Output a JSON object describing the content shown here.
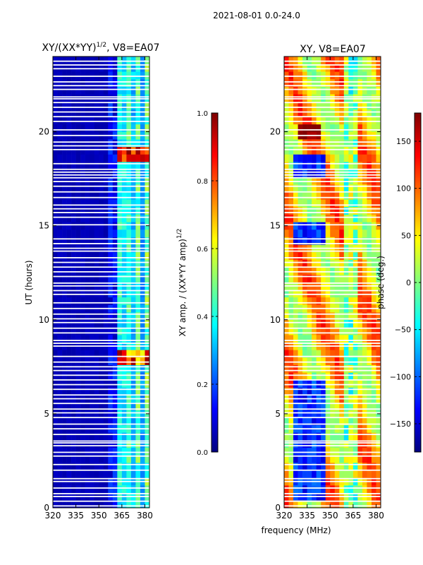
{
  "figure_title": "2021-08-01 0.0-24.0",
  "shared_xlabel": "frequency (MHz)",
  "colors": {
    "jet": [
      "#00007f",
      "#0000ff",
      "#007fff",
      "#00ffff",
      "#7fff7f",
      "#ffff00",
      "#ff7f00",
      "#ff0000",
      "#7f0000"
    ],
    "gap": "#ffffff"
  },
  "chart_data": [
    {
      "type": "heatmap",
      "title_prefix": "XY/(XX*YY)",
      "title_exponent": "1/2",
      "title_suffix": ", V8=EA07",
      "xlabel": "",
      "ylabel": "UT (hours)",
      "xlim": [
        320,
        383
      ],
      "ylim": [
        0,
        24
      ],
      "xticks": [
        "320",
        "335",
        "350",
        "365",
        "380"
      ],
      "xtick_values": [
        320,
        335,
        350,
        365,
        380
      ],
      "yticks": [
        "0",
        "5",
        "10",
        "15",
        "20"
      ],
      "ytick_values": [
        0,
        5,
        10,
        15,
        20
      ],
      "colorbar": {
        "label": "XY amp. / (XX*YY amp)",
        "label_exponent": "1/2",
        "range": [
          0.0,
          1.0
        ],
        "ticks": [
          "0.0",
          "0.2",
          "0.4",
          "0.6",
          "0.8",
          "1.0"
        ],
        "tick_values": [
          0.0,
          0.2,
          0.4,
          0.6,
          0.8,
          1.0
        ]
      },
      "description_values": "Mostly low amplitude (~0.05) below 362 MHz; patchy 0.3-0.7 between 362-382 MHz; peaks near 1.0 around 18.5 h and 8 h."
    },
    {
      "type": "heatmap",
      "title_prefix": "XY, V8=EA07",
      "title_exponent": "",
      "title_suffix": "",
      "xlabel": "frequency (MHz)",
      "ylabel": "",
      "xlim": [
        320,
        383
      ],
      "ylim": [
        0,
        24
      ],
      "xticks": [
        "320",
        "335",
        "350",
        "365",
        "380"
      ],
      "xtick_values": [
        320,
        335,
        350,
        365,
        380
      ],
      "yticks": [
        "0",
        "5",
        "10",
        "15",
        "20"
      ],
      "ytick_values": [
        0,
        5,
        10,
        15,
        20
      ],
      "colorbar": {
        "label": "phase (deg.)",
        "label_exponent": "",
        "range": [
          -180,
          180
        ],
        "ticks": [
          "−150",
          "−100",
          "−50",
          "0",
          "50",
          "100",
          "150"
        ],
        "tick_values": [
          -150,
          -100,
          -50,
          0,
          50,
          100,
          150
        ]
      },
      "description_values": "Phase mostly 40-120 deg; deep blue (-150) patches near 330-345 MHz at 14-15 h and 0-7 h; red band near 8.2-8.5 h."
    }
  ],
  "gaps_hours": [
    0.1,
    0.35,
    0.6,
    0.75,
    1.05,
    1.4,
    1.55,
    2.0,
    2.3,
    2.75,
    2.95,
    3.3,
    3.45,
    3.55,
    3.9,
    4.2,
    4.45,
    4.8,
    5.05,
    5.25,
    5.55,
    5.8,
    6.0,
    6.3,
    6.55,
    6.8,
    7.05,
    7.3,
    7.5,
    7.75,
    8.05,
    8.6,
    8.75,
    8.9,
    9.3,
    9.55,
    9.85,
    10.05,
    10.3,
    10.6,
    10.9,
    11.35,
    11.55,
    11.8,
    11.95,
    12.3,
    12.55,
    12.8,
    13.05,
    13.3,
    13.65,
    13.8,
    14.05,
    14.3,
    15.05,
    15.45,
    15.7,
    15.9,
    16.1,
    16.5,
    16.8,
    17.1,
    17.35,
    17.55,
    17.7,
    17.85,
    18.0,
    18.3,
    19.05,
    19.25,
    19.45,
    19.8,
    20.1,
    20.55,
    20.8,
    21.05,
    21.3,
    21.55,
    21.75,
    21.85,
    22.25,
    22.45,
    22.65,
    22.95,
    23.35,
    23.55,
    23.75
  ]
}
